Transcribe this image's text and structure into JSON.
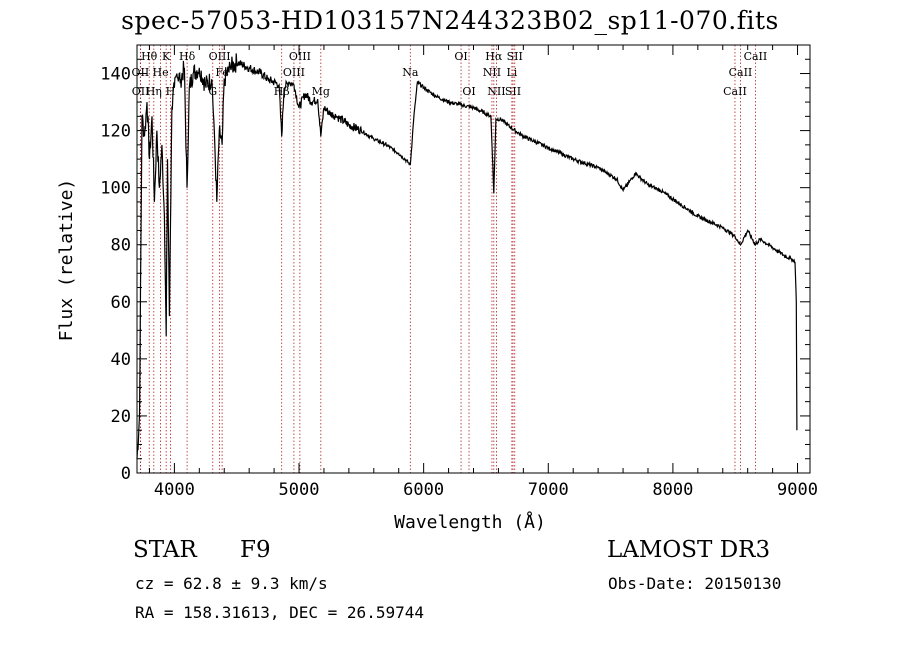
{
  "chart_data": {
    "type": "line",
    "title": "spec-57053-HD103157N244323B02_sp11-070.fits",
    "xlabel": "Wavelength (Å)",
    "ylabel": "Flux (relative)",
    "xlim": [
      3700,
      9100
    ],
    "ylim": [
      0,
      150
    ],
    "xticks": [
      4000,
      5000,
      6000,
      7000,
      8000,
      9000
    ],
    "yticks": [
      0,
      20,
      40,
      60,
      80,
      100,
      120,
      140
    ],
    "series": [
      {
        "name": "spectrum",
        "x": [
          3700,
          3720,
          3740,
          3760,
          3780,
          3800,
          3820,
          3840,
          3860,
          3880,
          3900,
          3920,
          3934,
          3945,
          3960,
          3968,
          3980,
          4000,
          4020,
          4050,
          4080,
          4101,
          4120,
          4150,
          4200,
          4250,
          4300,
          4320,
          4340,
          4360,
          4383,
          4400,
          4450,
          4500,
          4550,
          4600,
          4650,
          4700,
          4750,
          4800,
          4840,
          4861,
          4880,
          4920,
          4960,
          5000,
          5050,
          5100,
          5150,
          5175,
          5200,
          5250,
          5300,
          5400,
          5500,
          5600,
          5700,
          5800,
          5850,
          5893,
          5920,
          5950,
          6000,
          6100,
          6200,
          6300,
          6400,
          6500,
          6540,
          6563,
          6580,
          6620,
          6700,
          6800,
          7000,
          7200,
          7400,
          7550,
          7600,
          7650,
          7700,
          7800,
          7900,
          8000,
          8100,
          8200,
          8300,
          8400,
          8498,
          8542,
          8600,
          8662,
          8700,
          8800,
          8900,
          8950,
          8980,
          8990,
          8995
        ],
        "y": [
          5,
          20,
          125,
          118,
          130,
          110,
          125,
          95,
          120,
          100,
          115,
          90,
          48,
          110,
          55,
          85,
          128,
          135,
          140,
          138,
          142,
          100,
          135,
          140,
          142,
          136,
          138,
          120,
          95,
          120,
          115,
          138,
          142,
          144,
          143,
          142,
          141,
          140,
          138,
          137,
          136,
          118,
          135,
          137,
          136,
          128,
          133,
          130,
          131,
          118,
          128,
          126,
          125,
          122,
          120,
          117,
          115,
          112,
          110,
          108,
          124,
          137,
          135,
          132,
          130,
          129,
          128,
          126,
          125,
          98,
          124,
          124,
          121,
          118,
          114,
          110,
          107,
          103,
          99,
          102,
          105,
          101,
          99,
          96,
          93,
          90,
          88,
          86,
          83,
          80,
          85,
          80,
          82,
          79,
          76,
          75,
          74,
          60,
          15
        ]
      }
    ],
    "line_markers": [
      {
        "label": "Hθ",
        "x": 3798,
        "row": 0
      },
      {
        "label": "K",
        "x": 3934,
        "row": 0
      },
      {
        "label": "Hδ",
        "x": 4102,
        "row": 0
      },
      {
        "label": "OIII",
        "x": 4363,
        "row": 0
      },
      {
        "label": "OIII",
        "x": 5007,
        "row": 0
      },
      {
        "label": "OI",
        "x": 6300,
        "row": 0
      },
      {
        "label": "Hα",
        "x": 6563,
        "row": 0
      },
      {
        "label": "SII",
        "x": 6731,
        "row": 0
      },
      {
        "label": "CaII",
        "x": 8662,
        "row": 0
      },
      {
        "label": "OII",
        "x": 3727,
        "row": 1
      },
      {
        "label": "He",
        "x": 3889,
        "row": 1
      },
      {
        "label": "Fe",
        "x": 4383,
        "row": 1
      },
      {
        "label": "OIII",
        "x": 4959,
        "row": 1
      },
      {
        "label": "Na",
        "x": 5893,
        "row": 1
      },
      {
        "label": "NII",
        "x": 6548,
        "row": 1
      },
      {
        "label": "Li",
        "x": 6708,
        "row": 1
      },
      {
        "label": "CaII",
        "x": 8542,
        "row": 1
      },
      {
        "label": "OII",
        "x": 3729,
        "row": 2
      },
      {
        "label": "Hη",
        "x": 3835,
        "row": 2
      },
      {
        "label": "H",
        "x": 3968,
        "row": 2
      },
      {
        "label": "G",
        "x": 4308,
        "row": 2
      },
      {
        "label": "Hβ",
        "x": 4861,
        "row": 2
      },
      {
        "label": "Mg",
        "x": 5175,
        "row": 2
      },
      {
        "label": "OI",
        "x": 6364,
        "row": 2
      },
      {
        "label": "NII",
        "x": 6584,
        "row": 2
      },
      {
        "label": "SII",
        "x": 6717,
        "row": 2
      },
      {
        "label": "CaII",
        "x": 8498,
        "row": 2
      }
    ]
  },
  "info": {
    "object_class": "STAR",
    "subclass": "F9",
    "survey": "LAMOST DR3",
    "cz": "cz = 62.8 ± 9.3 km/s",
    "obs_date": "Obs-Date: 20150130",
    "coords": "RA = 158.31613, DEC =  26.59744"
  }
}
